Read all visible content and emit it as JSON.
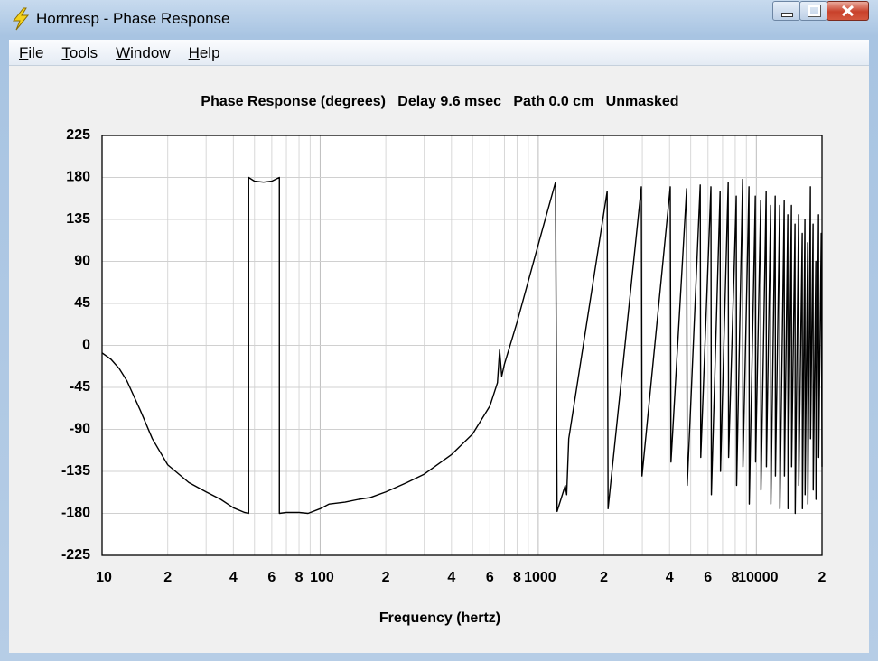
{
  "window": {
    "title": "Hornresp - Phase Response",
    "menu": [
      "File",
      "Tools",
      "Window",
      "Help"
    ]
  },
  "chart_data": {
    "type": "line",
    "title": "Phase Response (degrees)   Delay 9.6 msec   Path 0.0 cm   Unmasked",
    "xlabel": "Frequency (hertz)",
    "log_x": true,
    "grid": true,
    "color": "#000000",
    "xlim": [
      10,
      20000
    ],
    "xticks": [
      10,
      {
        "value": 20,
        "label": "2"
      },
      {
        "value": 40,
        "label": "4"
      },
      {
        "value": 60,
        "label": "6"
      },
      {
        "value": 80,
        "label": "8"
      },
      100,
      {
        "value": 200,
        "label": "2"
      },
      {
        "value": 400,
        "label": "4"
      },
      {
        "value": 600,
        "label": "6"
      },
      {
        "value": 800,
        "label": "8"
      },
      1000,
      {
        "value": 2000,
        "label": "2"
      },
      {
        "value": 4000,
        "label": "4"
      },
      {
        "value": 6000,
        "label": "6"
      },
      {
        "value": 8000,
        "label": "8"
      },
      10000,
      {
        "value": 20000,
        "label": "2"
      }
    ],
    "x_minor_grid": [
      30,
      50,
      70,
      90,
      300,
      500,
      700,
      900,
      3000,
      5000,
      7000,
      9000
    ],
    "ylim": [
      -225,
      225
    ],
    "yticks": [
      -225,
      -180,
      -135,
      -90,
      -45,
      0,
      45,
      90,
      135,
      180,
      225
    ],
    "x": [
      10,
      11,
      12,
      13,
      15,
      17,
      20,
      25,
      30,
      35,
      40,
      45,
      47,
      47,
      50,
      55,
      60,
      65,
      65,
      70,
      80,
      88,
      100,
      110,
      130,
      150,
      170,
      200,
      250,
      300,
      400,
      500,
      600,
      650,
      665,
      680,
      700,
      800,
      1000,
      1200,
      1220,
      1330,
      1350,
      1380,
      2070,
      2090,
      2970,
      2990,
      4030,
      4060,
      4790,
      4820,
      5530,
      5560,
      6190,
      6220,
      6820,
      6850,
      7430,
      7460,
      8090,
      8120,
      8650,
      8680,
      9250,
      9280,
      9890,
      9920,
      10470,
      10500,
      11090,
      11120,
      11630,
      11660,
      12200,
      12230,
      12790,
      12820,
      13420,
      13450,
      13940,
      13970,
      14480,
      14510,
      15040,
      15070,
      15620,
      15650,
      16230,
      16260,
      16700,
      16730,
      17190,
      17220,
      17690,
      17720,
      18200,
      18230,
      18740,
      18770,
      19280,
      19310,
      19840,
      20000
    ],
    "values": [
      -8,
      -15,
      -25,
      -38,
      -70,
      -100,
      -128,
      -147,
      -157,
      -165,
      -174,
      -179,
      -180,
      180,
      176,
      175,
      176,
      180,
      -180,
      -179,
      -179,
      -180,
      -175,
      -170,
      -168,
      -165,
      -163,
      -157,
      -147,
      -138,
      -117,
      -95,
      -65,
      -40,
      -5,
      -33,
      -20,
      25,
      108,
      175,
      -178,
      -150,
      -160,
      -100,
      165,
      -175,
      170,
      -140,
      170,
      -125,
      168,
      -150,
      172,
      -120,
      170,
      -160,
      165,
      -135,
      175,
      -120,
      160,
      -150,
      178,
      -130,
      170,
      -170,
      160,
      -125,
      155,
      -155,
      165,
      -130,
      150,
      -170,
      160,
      -140,
      150,
      -175,
      155,
      -140,
      140,
      -175,
      150,
      -130,
      130,
      -180,
      140,
      -150,
      120,
      -175,
      135,
      -160,
      110,
      -170,
      170,
      -100,
      130,
      -155,
      90,
      -165,
      140,
      -120,
      120,
      -130
    ]
  }
}
